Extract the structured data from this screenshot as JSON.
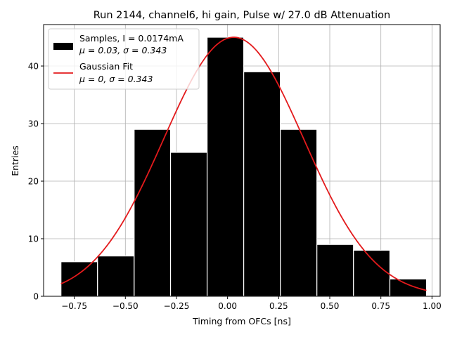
{
  "chart_data": {
    "type": "bar",
    "title": "Run 2144, channel6, hi gain, Pulse w/ 27.0 dB Attenuation",
    "xlabel": "Timing from OFCs [ns]",
    "ylabel": "Entries",
    "xlim": [
      -0.9,
      1.04
    ],
    "ylim": [
      0,
      47.2
    ],
    "grid": true,
    "legend_placement": "top-left",
    "bin_edges": [
      -0.815,
      -0.636,
      -0.457,
      -0.279,
      -0.1,
      0.079,
      0.258,
      0.437,
      0.616,
      0.794,
      0.973
    ],
    "counts": [
      6,
      7,
      29,
      25,
      45,
      39,
      29,
      9,
      8,
      3
    ],
    "bar_color": "#000000",
    "fit": {
      "name": "Gaussian Fit",
      "mu": 0.03,
      "sigma": 0.343,
      "amplitude": 45,
      "x_range": [
        -0.815,
        0.973
      ],
      "color": "#e31a1c"
    },
    "xticks": [
      -0.75,
      -0.5,
      -0.25,
      0.0,
      0.25,
      0.5,
      0.75,
      1.0
    ],
    "xtick_labels": [
      "−0.75",
      "−0.50",
      "−0.25",
      "0.00",
      "0.25",
      "0.50",
      "0.75",
      "1.00"
    ],
    "yticks": [
      0,
      10,
      20,
      30,
      40
    ],
    "ytick_labels": [
      "0",
      "10",
      "20",
      "30",
      "40"
    ],
    "legend": [
      {
        "kind": "patch",
        "line1": "Samples, I = 0.0174mA",
        "line2": "μ = 0.03, σ = 0.343"
      },
      {
        "kind": "line",
        "line1": "Gaussian Fit",
        "line2": "μ = 0, σ = 0.343"
      }
    ]
  }
}
